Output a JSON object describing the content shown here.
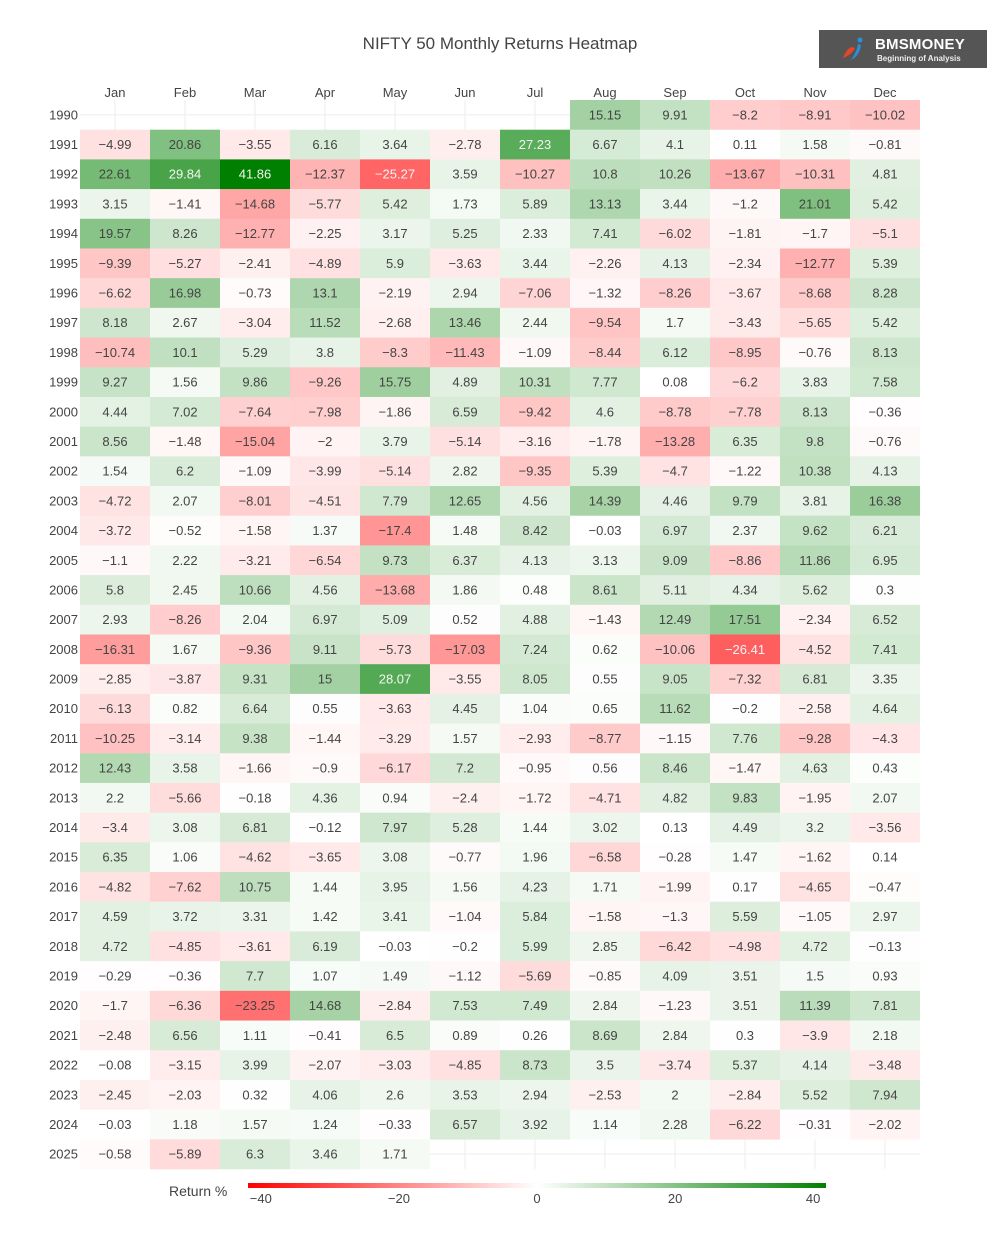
{
  "chart_data": {
    "type": "heatmap",
    "title": "NIFTY 50 Monthly Returns Heatmap",
    "x_categories": [
      "Jan",
      "Feb",
      "Mar",
      "Apr",
      "May",
      "Jun",
      "Jul",
      "Aug",
      "Sep",
      "Oct",
      "Nov",
      "Dec"
    ],
    "y_categories": [
      "1990",
      "1991",
      "1992",
      "1993",
      "1994",
      "1995",
      "1996",
      "1997",
      "1998",
      "1999",
      "2000",
      "2001",
      "2002",
      "2003",
      "2004",
      "2005",
      "2006",
      "2007",
      "2008",
      "2009",
      "2010",
      "2011",
      "2012",
      "2013",
      "2014",
      "2015",
      "2016",
      "2017",
      "2018",
      "2019",
      "2020",
      "2021",
      "2022",
      "2023",
      "2024",
      "2025"
    ],
    "values": [
      [
        null,
        null,
        null,
        null,
        null,
        null,
        null,
        15.15,
        9.91,
        -8.2,
        -8.91,
        -10.02
      ],
      [
        -4.99,
        20.86,
        -3.55,
        6.16,
        3.64,
        -2.78,
        27.23,
        6.67,
        4.1,
        0.11,
        1.58,
        -0.81
      ],
      [
        22.61,
        29.84,
        41.86,
        -12.37,
        -25.27,
        3.59,
        -10.27,
        10.8,
        10.26,
        -13.67,
        -10.31,
        4.81
      ],
      [
        3.15,
        -1.41,
        -14.68,
        -5.77,
        5.42,
        1.73,
        5.89,
        13.13,
        3.44,
        -1.2,
        21.01,
        5.42
      ],
      [
        19.57,
        8.26,
        -12.77,
        -2.25,
        3.17,
        5.25,
        2.33,
        7.41,
        -6.02,
        -1.81,
        -1.7,
        -5.1
      ],
      [
        -9.39,
        -5.27,
        -2.41,
        -4.89,
        5.9,
        -3.63,
        3.44,
        -2.26,
        4.13,
        -2.34,
        -12.77,
        5.39
      ],
      [
        -6.62,
        16.98,
        -0.73,
        13.1,
        -2.19,
        2.94,
        -7.06,
        -1.32,
        -8.26,
        -3.67,
        -8.68,
        8.28
      ],
      [
        8.18,
        2.67,
        -3.04,
        11.52,
        -2.68,
        13.46,
        2.44,
        -9.54,
        1.7,
        -3.43,
        -5.65,
        5.42
      ],
      [
        -10.74,
        10.1,
        5.29,
        3.8,
        -8.3,
        -11.43,
        -1.09,
        -8.44,
        6.12,
        -8.95,
        -0.76,
        8.13
      ],
      [
        9.27,
        1.56,
        9.86,
        -9.26,
        15.75,
        4.89,
        10.31,
        7.77,
        0.08,
        -6.2,
        3.83,
        7.58
      ],
      [
        4.44,
        7.02,
        -7.64,
        -7.98,
        -1.86,
        6.59,
        -9.42,
        4.6,
        -8.78,
        -7.78,
        8.13,
        -0.36
      ],
      [
        8.56,
        -1.48,
        -15.04,
        -2,
        3.79,
        -5.14,
        -3.16,
        -1.78,
        -13.28,
        6.35,
        9.8,
        -0.76
      ],
      [
        1.54,
        6.2,
        -1.09,
        -3.99,
        -5.14,
        2.82,
        -9.35,
        5.39,
        -4.7,
        -1.22,
        10.38,
        4.13
      ],
      [
        -4.72,
        2.07,
        -8.01,
        -4.51,
        7.79,
        12.65,
        4.56,
        14.39,
        4.46,
        9.79,
        3.81,
        16.38
      ],
      [
        -3.72,
        -0.52,
        -1.58,
        1.37,
        -17.4,
        1.48,
        8.42,
        -0.03,
        6.97,
        2.37,
        9.62,
        6.21
      ],
      [
        -1.1,
        2.22,
        -3.21,
        -6.54,
        9.73,
        6.37,
        4.13,
        3.13,
        9.09,
        -8.86,
        11.86,
        6.95
      ],
      [
        5.8,
        2.45,
        10.66,
        4.56,
        -13.68,
        1.86,
        0.48,
        8.61,
        5.11,
        4.34,
        5.62,
        0.3
      ],
      [
        2.93,
        -8.26,
        2.04,
        6.97,
        5.09,
        0.52,
        4.88,
        -1.43,
        12.49,
        17.51,
        -2.34,
        6.52
      ],
      [
        -16.31,
        1.67,
        -9.36,
        9.11,
        -5.73,
        -17.03,
        7.24,
        0.62,
        -10.06,
        -26.41,
        -4.52,
        7.41
      ],
      [
        -2.85,
        -3.87,
        9.31,
        15,
        28.07,
        -3.55,
        8.05,
        0.55,
        9.05,
        -7.32,
        6.81,
        3.35
      ],
      [
        -6.13,
        0.82,
        6.64,
        0.55,
        -3.63,
        4.45,
        1.04,
        0.65,
        11.62,
        -0.2,
        -2.58,
        4.64
      ],
      [
        -10.25,
        -3.14,
        9.38,
        -1.44,
        -3.29,
        1.57,
        -2.93,
        -8.77,
        -1.15,
        7.76,
        -9.28,
        -4.3
      ],
      [
        12.43,
        3.58,
        -1.66,
        -0.9,
        -6.17,
        7.2,
        -0.95,
        0.56,
        8.46,
        -1.47,
        4.63,
        0.43
      ],
      [
        2.2,
        -5.66,
        -0.18,
        4.36,
        0.94,
        -2.4,
        -1.72,
        -4.71,
        4.82,
        9.83,
        -1.95,
        2.07
      ],
      [
        -3.4,
        3.08,
        6.81,
        -0.12,
        7.97,
        5.28,
        1.44,
        3.02,
        0.13,
        4.49,
        3.2,
        -3.56
      ],
      [
        6.35,
        1.06,
        -4.62,
        -3.65,
        3.08,
        -0.77,
        1.96,
        -6.58,
        -0.28,
        1.47,
        -1.62,
        0.14
      ],
      [
        -4.82,
        -7.62,
        10.75,
        1.44,
        3.95,
        1.56,
        4.23,
        1.71,
        -1.99,
        0.17,
        -4.65,
        -0.47
      ],
      [
        4.59,
        3.72,
        3.31,
        1.42,
        3.41,
        -1.04,
        5.84,
        -1.58,
        -1.3,
        5.59,
        -1.05,
        2.97
      ],
      [
        4.72,
        -4.85,
        -3.61,
        6.19,
        -0.03,
        -0.2,
        5.99,
        2.85,
        -6.42,
        -4.98,
        4.72,
        -0.13
      ],
      [
        -0.29,
        -0.36,
        7.7,
        1.07,
        1.49,
        -1.12,
        -5.69,
        -0.85,
        4.09,
        3.51,
        1.5,
        0.93
      ],
      [
        -1.7,
        -6.36,
        -23.25,
        14.68,
        -2.84,
        7.53,
        7.49,
        2.84,
        -1.23,
        3.51,
        11.39,
        7.81
      ],
      [
        -2.48,
        6.56,
        1.11,
        -0.41,
        6.5,
        0.89,
        0.26,
        8.69,
        2.84,
        0.3,
        -3.9,
        2.18
      ],
      [
        -0.08,
        -3.15,
        3.99,
        -2.07,
        -3.03,
        -4.85,
        8.73,
        3.5,
        -3.74,
        5.37,
        4.14,
        -3.48
      ],
      [
        -2.45,
        -2.03,
        0.32,
        4.06,
        2.6,
        3.53,
        2.94,
        -2.53,
        2,
        -2.84,
        5.52,
        7.94
      ],
      [
        -0.03,
        1.18,
        1.57,
        1.24,
        -0.33,
        6.57,
        3.92,
        1.14,
        2.28,
        -6.22,
        -0.31,
        -2.02
      ],
      [
        -0.58,
        -5.89,
        6.3,
        3.46,
        1.71,
        null,
        null,
        null,
        null,
        null,
        null,
        null
      ]
    ],
    "colorscale": {
      "low": "#ff0000",
      "mid": "#ffffff",
      "high": "#008000",
      "zmin": -41.86,
      "zmax": 41.86
    },
    "colorbar": {
      "title": "Return %",
      "ticks": [
        "−40",
        "−20",
        "0",
        "20",
        "40"
      ],
      "tick_values": [
        -40,
        -20,
        0,
        20,
        40
      ],
      "orientation": "horizontal",
      "placement": "bottom"
    },
    "x_axis_side": "top",
    "text_labels": true
  },
  "logo": {
    "name": "BMSMONEY",
    "tagline": "Beginning of Analysis"
  }
}
